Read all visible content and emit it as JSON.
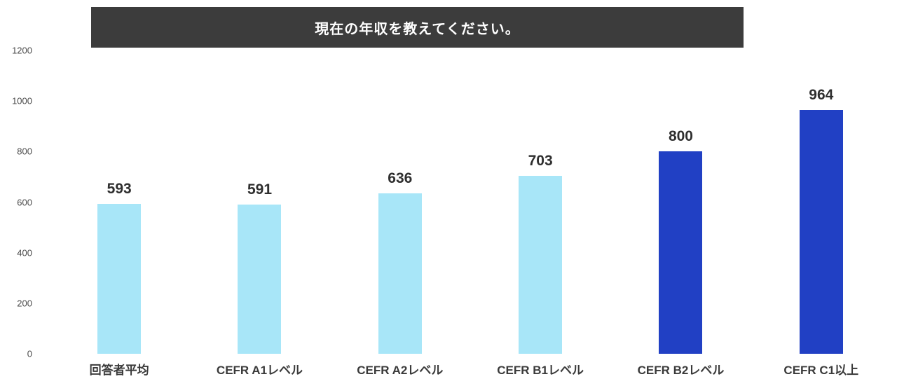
{
  "title": "現在の年収を教えてください。",
  "colors": {
    "title_bg": "#3c3c3c",
    "title_text": "#ffffff",
    "bar_light": "#a8e6f8",
    "bar_dark": "#2140c4",
    "axis_text": "#4a4a4a",
    "label_text": "#2f2f2f"
  },
  "chart_data": {
    "type": "bar",
    "title": "現在の年収を教えてください。",
    "categories": [
      "回答者平均",
      "CEFR A1レベル",
      "CEFR A2レベル",
      "CEFR B1レベル",
      "CEFR B2レベル",
      "CEFR C1以上"
    ],
    "values": [
      593,
      591,
      636,
      703,
      800,
      964
    ],
    "bar_colors": [
      "light",
      "light",
      "light",
      "light",
      "dark",
      "dark"
    ],
    "xlabel": "",
    "ylabel": "",
    "ylim": [
      0,
      1200
    ],
    "yticks": [
      0,
      200,
      400,
      600,
      800,
      1000,
      1200
    ],
    "grid": false,
    "legend": false,
    "value_labels_shown": true
  }
}
